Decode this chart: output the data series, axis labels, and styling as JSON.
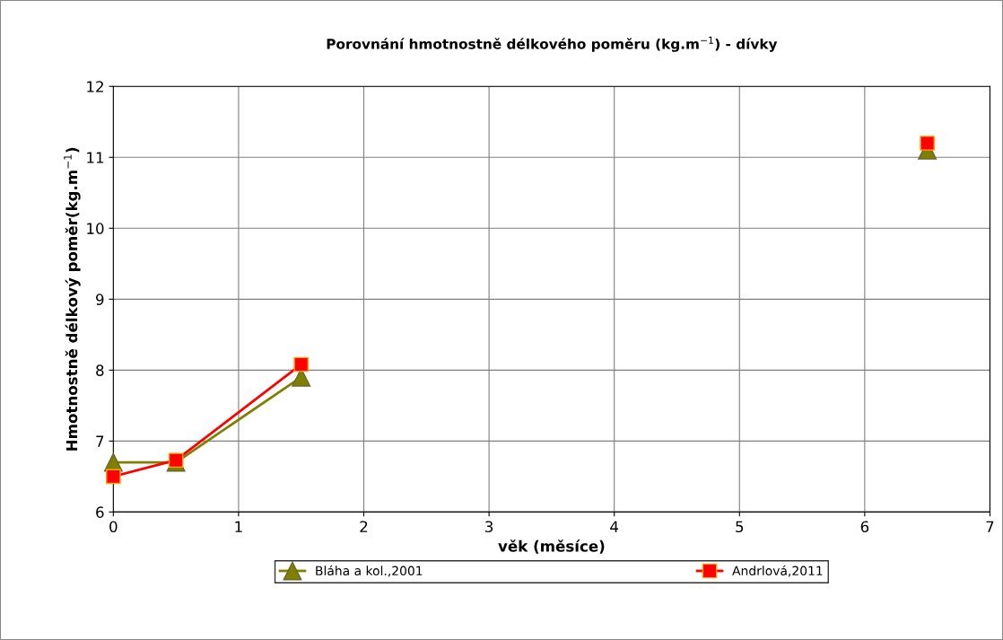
{
  "chart_data": {
    "type": "line",
    "title": "Porovnání hmotnostně délkového poměru (kg.m$^{−1}$) - dívky",
    "xlabel": "věk (měsíce)",
    "ylabel": "Hmotnostně délkový poměr(kg.m$^{−1}$)",
    "x": [
      0,
      0.5,
      1.5,
      3,
      6.5
    ],
    "series": [
      {
        "name": "Bláha a kol.,2001",
        "color": "#808000",
        "marker": "triangle",
        "values": [
          6.7,
          6.7,
          7.9,
          null,
          11.1
        ]
      },
      {
        "name": "Andrlová,2011",
        "color": "#ff0000",
        "marker": "square",
        "values": [
          6.5,
          6.73,
          8.08,
          null,
          11.2
        ]
      }
    ],
    "xlim": [
      0,
      7
    ],
    "xticks": [
      0,
      1,
      2,
      3,
      4,
      5,
      6,
      7
    ],
    "ylim": [
      6,
      12
    ],
    "yticks": [
      6,
      7,
      8,
      9,
      10,
      11,
      12
    ],
    "grid": true,
    "legend": "bottom",
    "line_style": "solid"
  }
}
